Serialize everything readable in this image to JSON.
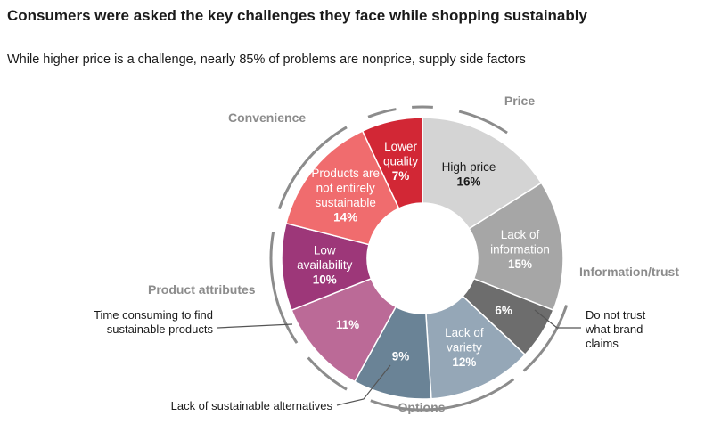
{
  "title": "Consumers were asked the key challenges they face while shopping sustainably",
  "subtitle": "While higher price is a challenge, nearly 85% of problems are nonprice, supply side factors",
  "chart_data": {
    "type": "pie",
    "style": "donut",
    "slices": [
      {
        "label": "High price",
        "value": 16,
        "value_label": "16%",
        "color": "#d4d4d4",
        "text_color": "#1a1a1a",
        "group": "Price"
      },
      {
        "label": "Lack of information",
        "value": 15,
        "value_label": "15%",
        "color": "#a6a6a6",
        "text_color": "#ffffff",
        "group": "Information/trust"
      },
      {
        "label": "",
        "value": 6,
        "value_label": "6%",
        "color": "#6d6d6d",
        "text_color": "#ffffff",
        "group": "Information/trust",
        "annotation": "Do not trust what brand claims"
      },
      {
        "label": "Lack of variety",
        "value": 12,
        "value_label": "12%",
        "color": "#95a7b7",
        "text_color": "#ffffff",
        "group": "Options"
      },
      {
        "label": "",
        "value": 9,
        "value_label": "9%",
        "color": "#6a8396",
        "text_color": "#ffffff",
        "group": "Options",
        "annotation": "Lack of sustainable alternatives"
      },
      {
        "label": "",
        "value": 11,
        "value_label": "11%",
        "color": "#bb6a97",
        "text_color": "#ffffff",
        "group": "Product attributes",
        "annotation": "Time consuming to find sustainable products"
      },
      {
        "label": "Low availability",
        "value": 10,
        "value_label": "10%",
        "color": "#9d3779",
        "text_color": "#ffffff",
        "group": "Product attributes"
      },
      {
        "label": "Products are not entirely sustainable",
        "value": 14,
        "value_label": "14%",
        "color": "#f06c6e",
        "text_color": "#ffffff",
        "group": "Convenience"
      },
      {
        "label": "Lower quality",
        "value": 7,
        "value_label": "7%",
        "color": "#d22735",
        "text_color": "#ffffff",
        "group": "Convenience"
      }
    ],
    "groups": [
      "Price",
      "Information/trust",
      "Options",
      "Product attributes",
      "Convenience"
    ]
  }
}
